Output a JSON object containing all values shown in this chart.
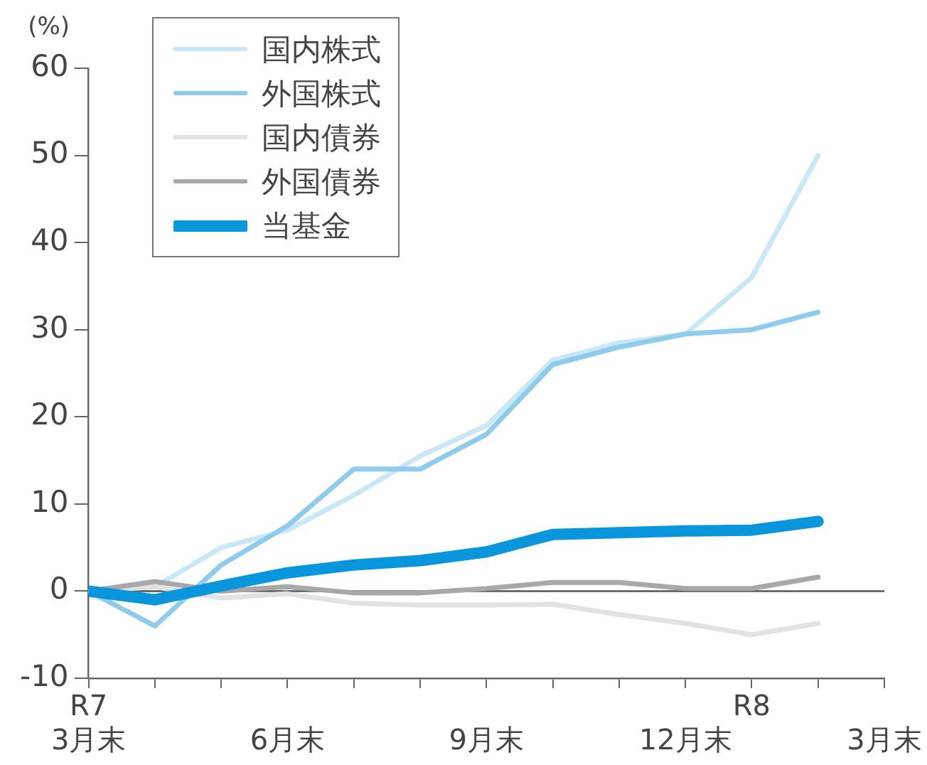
{
  "chart_data": {
    "type": "line",
    "ylabel": "(%)",
    "categories": [
      "R7\n3月末",
      null,
      null,
      "6月末",
      null,
      null,
      "9月末",
      null,
      null,
      "12月末",
      "R8",
      null,
      "3月末"
    ],
    "ylim": [
      -10,
      60
    ],
    "yticks": [
      -10,
      0,
      10,
      20,
      30,
      40,
      50,
      60
    ],
    "grid": false,
    "legend": "top left",
    "marker": "none",
    "line_style": "solid",
    "ref_lines": [
      {
        "axis": "y",
        "value": 0,
        "color": "#555555"
      }
    ],
    "series": [
      {
        "name": "国内株式",
        "color": "#c8e8f8",
        "values": [
          0,
          0.5,
          5,
          7,
          11,
          15.5,
          19,
          26.5,
          28.5,
          29.5,
          36,
          50,
          null
        ]
      },
      {
        "name": "外国株式",
        "color": "#8fcbea",
        "values": [
          0,
          -4,
          3,
          7.5,
          14,
          14,
          18,
          26,
          28,
          29.5,
          30,
          32,
          null
        ]
      },
      {
        "name": "国内債券",
        "color": "#e2e2e2",
        "values": [
          0,
          0.5,
          -0.8,
          -0.3,
          -1.4,
          -1.6,
          -1.6,
          -1.5,
          -2.7,
          -3.7,
          -5,
          -3.7,
          null
        ]
      },
      {
        "name": "外国債券",
        "color": "#a8a8a8",
        "values": [
          0,
          1.1,
          0,
          0.5,
          -0.2,
          -0.2,
          0.3,
          1,
          1,
          0.3,
          0.3,
          1.6,
          null
        ]
      },
      {
        "name": "当基金",
        "color": "#0a96dc",
        "values": [
          0,
          -1,
          0.6,
          2.1,
          3,
          3.5,
          4.5,
          6.5,
          6.7,
          6.9,
          7,
          8,
          null
        ]
      }
    ]
  }
}
